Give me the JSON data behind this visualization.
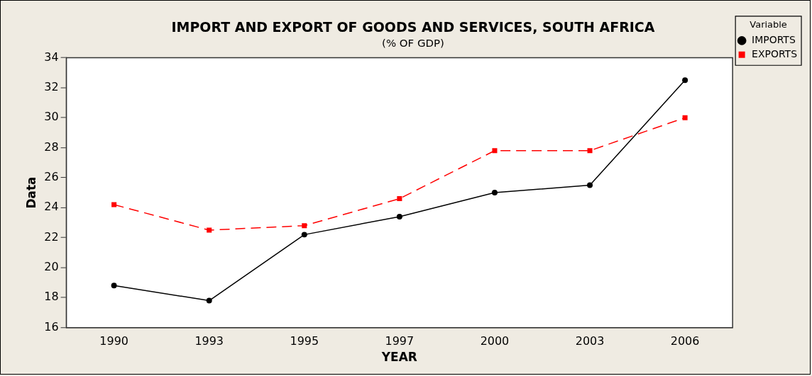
{
  "chart_data": {
    "type": "line",
    "title": "IMPORT AND EXPORT OF GOODS AND SERVICES, SOUTH AFRICA",
    "subtitle": "(% OF GDP)",
    "xlabel": "YEAR",
    "ylabel": "Data",
    "legend_title": "Variable",
    "categories": [
      "1990",
      "1993",
      "1995",
      "1997",
      "2000",
      "2003",
      "2006"
    ],
    "series": [
      {
        "name": "IMPORTS",
        "color": "#000000",
        "marker": "circle",
        "line_style": "solid",
        "values": [
          18.8,
          17.8,
          22.2,
          23.4,
          25.0,
          25.5,
          32.5
        ]
      },
      {
        "name": "EXPORTS",
        "color": "#ff0000",
        "marker": "square",
        "line_style": "dashed",
        "values": [
          24.2,
          22.5,
          22.8,
          24.6,
          27.8,
          27.8,
          30.0
        ]
      }
    ],
    "ylim": [
      16,
      34
    ],
    "yticks": [
      16,
      18,
      20,
      22,
      24,
      26,
      28,
      30,
      32,
      34
    ],
    "grid": false,
    "legend": "top right"
  }
}
